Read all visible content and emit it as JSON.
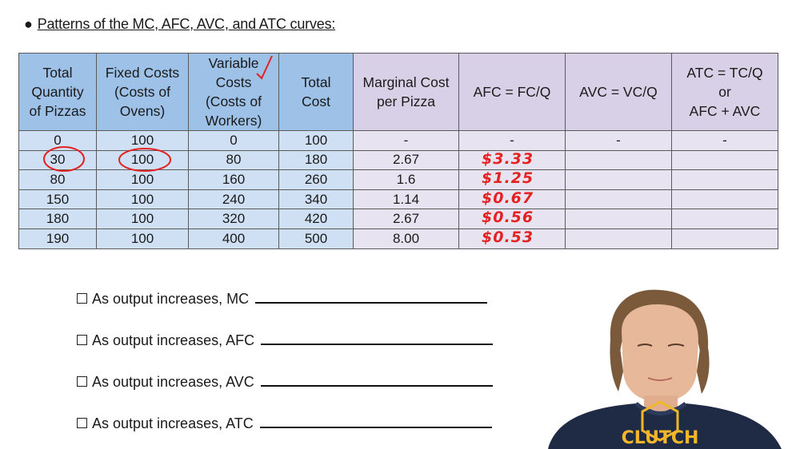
{
  "heading": {
    "bullet": "●",
    "text": "Patterns of the MC, AFC, AVC, and ATC curves:"
  },
  "table": {
    "headers": [
      [
        "Total",
        "Quantity",
        "of Pizzas"
      ],
      [
        "Fixed Costs",
        "(Costs of",
        "Ovens)"
      ],
      [
        "Variable",
        "Costs",
        "(Costs of",
        "Workers)"
      ],
      [
        "Total",
        "Cost"
      ],
      [
        "Marginal Cost",
        "per Pizza"
      ],
      [
        "AFC = FC/Q"
      ],
      [
        "AVC = VC/Q"
      ],
      [
        "ATC = TC/Q",
        "or",
        "AFC + AVC"
      ]
    ],
    "rows": [
      [
        "0",
        "100",
        "0",
        "100",
        "-",
        "-",
        "-",
        "-"
      ],
      [
        "30",
        "100",
        "80",
        "180",
        "2.67",
        "",
        "",
        ""
      ],
      [
        "80",
        "100",
        "160",
        "260",
        "1.6",
        "",
        "",
        ""
      ],
      [
        "150",
        "100",
        "240",
        "340",
        "1.14",
        "",
        "",
        ""
      ],
      [
        "180",
        "100",
        "320",
        "420",
        "2.67",
        "",
        "",
        ""
      ],
      [
        "190",
        "100",
        "400",
        "500",
        "8.00",
        "",
        "",
        ""
      ]
    ],
    "afc_handwritten": [
      "$3.33",
      "$1.25",
      "$0.67",
      "$0.56",
      "$0.53"
    ]
  },
  "statements": [
    "As output increases, MC",
    "As output increases, AFC",
    "As output increases, AVC",
    "As output increases, ATC"
  ],
  "presenter": {
    "shirt_text": "CLUTCH"
  },
  "colors": {
    "header_blue": "#9ec1e8",
    "header_purple": "#d8d0e6",
    "cell_blue": "#cfe0f4",
    "cell_purple": "#e8e3f0",
    "ink_red": "#e52222"
  }
}
